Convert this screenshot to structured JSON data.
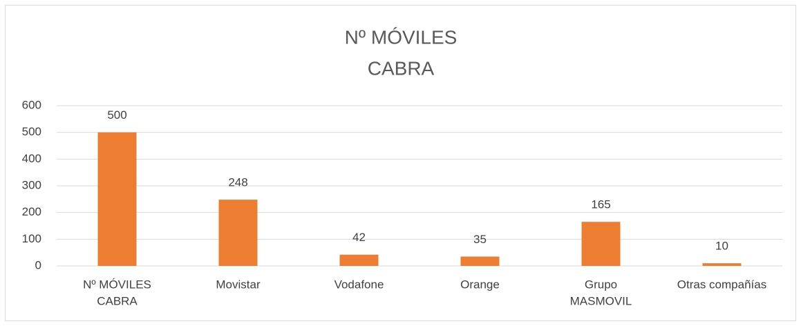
{
  "chart_data": {
    "type": "bar",
    "title": [
      "Nº MÓVILES",
      "CABRA"
    ],
    "categories": [
      [
        "Nº MÓVILES",
        "CABRA"
      ],
      [
        "Movistar"
      ],
      [
        "Vodafone"
      ],
      [
        "Orange"
      ],
      [
        "Grupo",
        "MASMOVIL"
      ],
      [
        "Otras compañías"
      ]
    ],
    "values": [
      500,
      248,
      42,
      35,
      165,
      10
    ],
    "color": "#ed7d31",
    "ylim": [
      0,
      600
    ],
    "yticks": [
      0,
      100,
      200,
      300,
      400,
      500,
      600
    ],
    "grid": true
  }
}
